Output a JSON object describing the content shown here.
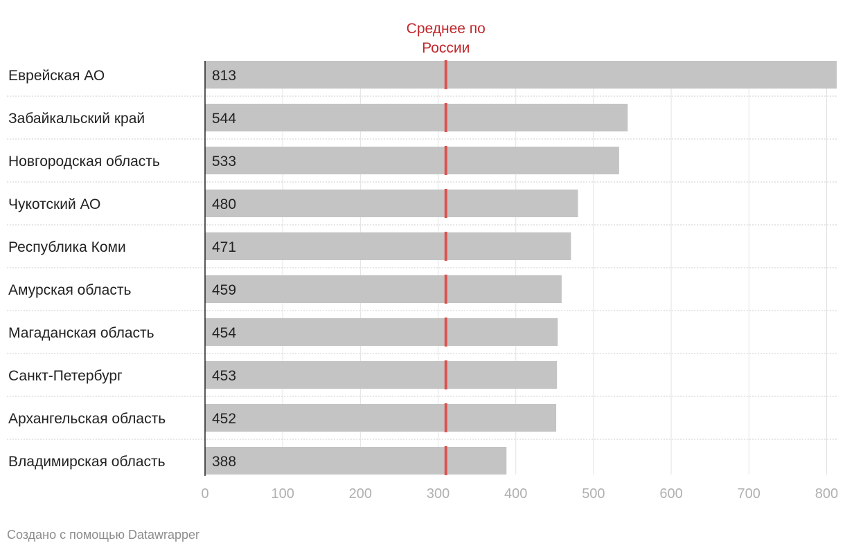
{
  "chart_data": {
    "type": "bar",
    "orientation": "horizontal",
    "title": "",
    "xlabel": "",
    "ylabel": "",
    "categories": [
      "Еврейская АО",
      "Забайкальский край",
      "Новгородская область",
      "Чукотский АО",
      "Республика Коми",
      "Амурская область",
      "Магаданская область",
      "Санкт-Петербург",
      "Архангельская область",
      "Владимирская область"
    ],
    "values": [
      813,
      544,
      533,
      480,
      471,
      459,
      454,
      453,
      452,
      388
    ],
    "value_labels": [
      "813",
      "544",
      "533",
      "480",
      "471",
      "459",
      "454",
      "453",
      "452",
      "388"
    ],
    "xlim": [
      0,
      813
    ],
    "xticks": [
      0,
      100,
      200,
      300,
      400,
      500,
      600,
      700,
      800
    ],
    "xtick_labels": [
      "0",
      "100",
      "200",
      "300",
      "400",
      "500",
      "600",
      "700",
      "800"
    ],
    "grid": true,
    "reference_line": {
      "value": 310,
      "label": "Среднее по России",
      "label_lines": [
        "Среднее по",
        "России"
      ]
    },
    "colors": {
      "bar": "#c4c4c4",
      "reference": "#d9534f",
      "reference_text": "#c0282d",
      "tick": "#b0b0b0",
      "grid": "#e2e2e2",
      "separator": "#cccccc",
      "text": "#222222",
      "footer": "#8c8c8c"
    }
  },
  "footer": {
    "credit": "Создано с помощью Datawrapper"
  }
}
